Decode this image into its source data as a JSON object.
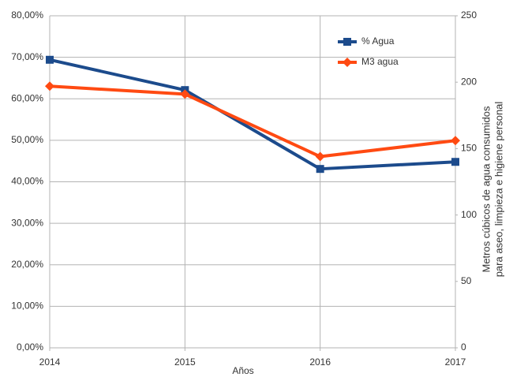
{
  "chart_data": {
    "type": "line",
    "categories": [
      "2014",
      "2015",
      "2016",
      "2017"
    ],
    "xlabel": "Años",
    "y2label": [
      "Metros cúbicos de agua consumidos",
      "para aseo, limpieza e higiene personal"
    ],
    "ylim": [
      0,
      80
    ],
    "yticks": [
      {
        "value": 0,
        "label": "0,00%"
      },
      {
        "value": 10,
        "label": "10,00%"
      },
      {
        "value": 20,
        "label": "20,00%"
      },
      {
        "value": 30,
        "label": "30,00%"
      },
      {
        "value": 40,
        "label": "40,00%"
      },
      {
        "value": 50,
        "label": "50,00%"
      },
      {
        "value": 60,
        "label": "60,00%"
      },
      {
        "value": 70,
        "label": "70,00%"
      },
      {
        "value": 80,
        "label": "80,00%"
      }
    ],
    "y2lim": [
      0,
      250
    ],
    "y2ticks": [
      0,
      50,
      100,
      150,
      200,
      250
    ],
    "grid": true,
    "legend": "top-right",
    "series": [
      {
        "name": "% Agua",
        "color": "#1c4b8c",
        "marker": "square",
        "values": [
          69.4,
          62.1,
          43.1,
          44.8
        ]
      },
      {
        "name": "M3 agua",
        "color": "#ff4a12",
        "marker": "diamond",
        "axis": "y2",
        "values": [
          197,
          191,
          144,
          156
        ]
      }
    ]
  }
}
